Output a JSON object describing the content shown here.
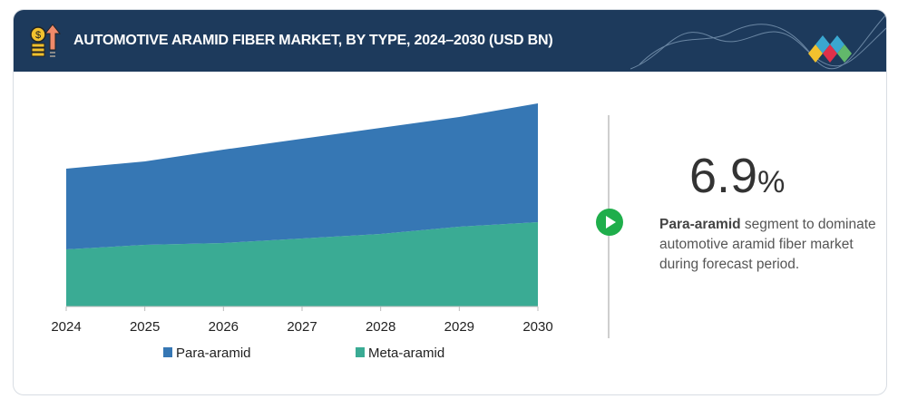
{
  "header": {
    "title": "AUTOMOTIVE ARAMID FIBER MARKET, BY TYPE, 2024–2030 (USD BN)",
    "icon": "money-growth-icon",
    "logo": "diamond-logo-icon"
  },
  "colors": {
    "header": "#1d3a5c",
    "para": "#3677b4",
    "meta": "#3aab94",
    "accent": "#1fae4b"
  },
  "chart_data": {
    "type": "area",
    "stacked": true,
    "title": "AUTOMOTIVE ARAMID FIBER MARKET, BY TYPE, 2024–2030 (USD BN)",
    "categories": [
      "2024",
      "2025",
      "2026",
      "2027",
      "2028",
      "2029",
      "2030"
    ],
    "series": [
      {
        "name": "Meta-aramid",
        "color": "#3aab94",
        "values": [
          6.3,
          6.8,
          7.0,
          7.5,
          8.0,
          8.8,
          9.3
        ]
      },
      {
        "name": "Para-aramid",
        "color": "#3677b4",
        "values": [
          8.9,
          9.2,
          10.3,
          11.0,
          11.7,
          12.1,
          13.1
        ]
      }
    ],
    "ylim": [
      0,
      22.4
    ],
    "y_axis_shown": false,
    "grid": false,
    "legend": "bottom",
    "legend_entries": [
      "Para-aramid",
      "Meta-aramid"
    ]
  },
  "highlight": {
    "value": "6.9",
    "unit": "%",
    "bold": "Para-aramid",
    "text": " segment to dominate automotive aramid fiber market during forecast period."
  }
}
